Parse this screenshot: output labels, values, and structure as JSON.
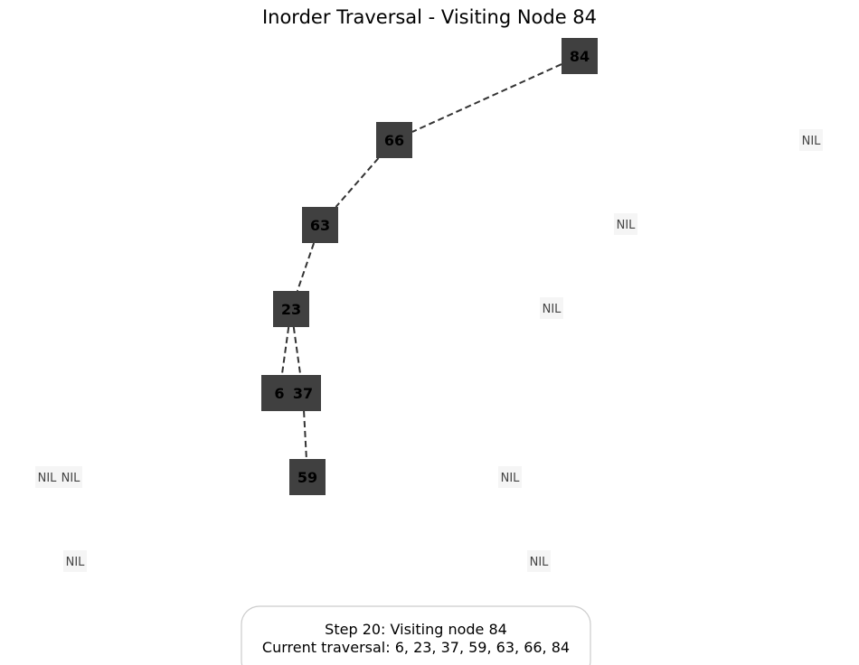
{
  "title": "Inorder Traversal - Visiting Node 84",
  "current_node": "84",
  "nodes": [
    {
      "id": "n84",
      "label": "84"
    },
    {
      "id": "n66",
      "label": "66"
    },
    {
      "id": "n63",
      "label": "63"
    },
    {
      "id": "n23",
      "label": "23"
    },
    {
      "id": "n6",
      "label": "6"
    },
    {
      "id": "n37",
      "label": "37"
    },
    {
      "id": "n59",
      "label": "59"
    }
  ],
  "edges": [
    {
      "from": "n84",
      "to": "n66"
    },
    {
      "from": "n66",
      "to": "n63"
    },
    {
      "from": "n63",
      "to": "n23"
    },
    {
      "from": "n23",
      "to": "n6"
    },
    {
      "from": "n23",
      "to": "n37"
    },
    {
      "from": "n37",
      "to": "n59"
    }
  ],
  "nil_label": "NIL",
  "nil_count": 8,
  "status": {
    "line1": "Step 20: Visiting node 84",
    "line2": "Current traversal: 6, 23, 37, 59, 63, 66, 84"
  }
}
